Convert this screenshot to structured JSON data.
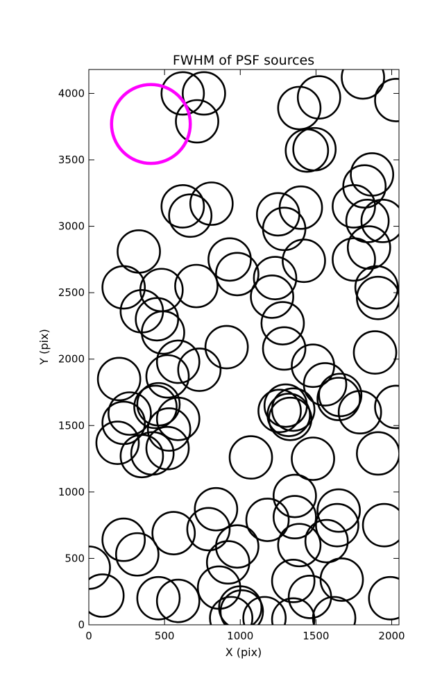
{
  "chart_data": {
    "type": "scatter",
    "title": "FWHM of PSF sources",
    "xlabel": "X (pix)",
    "ylabel": "Y (pix)",
    "xlim": [
      0,
      2048
    ],
    "ylim": [
      0,
      4180
    ],
    "xticks": [
      0,
      500,
      1000,
      1500,
      2000
    ],
    "yticks": [
      0,
      500,
      1000,
      1500,
      2000,
      2500,
      3000,
      3500,
      4000
    ],
    "grid": false,
    "series": [
      {
        "marker": "open-circle",
        "color": "#000000",
        "radius_pix": 140,
        "points": [
          [
            620,
            4000
          ],
          [
            760,
            4000
          ],
          [
            715,
            3790
          ],
          [
            1390,
            3890
          ],
          [
            1520,
            3970
          ],
          [
            1810,
            4120
          ],
          [
            2030,
            3950
          ],
          [
            1440,
            3570
          ],
          [
            1490,
            3580
          ],
          [
            1870,
            3390
          ],
          [
            1820,
            3300
          ],
          [
            1750,
            3150
          ],
          [
            1840,
            3040
          ],
          [
            1940,
            3040
          ],
          [
            620,
            3150
          ],
          [
            670,
            3080
          ],
          [
            810,
            3170
          ],
          [
            1250,
            3090
          ],
          [
            1290,
            2980
          ],
          [
            1400,
            3140
          ],
          [
            330,
            2810
          ],
          [
            930,
            2750
          ],
          [
            980,
            2640
          ],
          [
            1850,
            2840
          ],
          [
            1750,
            2750
          ],
          [
            1420,
            2740
          ],
          [
            1230,
            2610
          ],
          [
            1210,
            2470
          ],
          [
            230,
            2540
          ],
          [
            480,
            2520
          ],
          [
            710,
            2550
          ],
          [
            1900,
            2540
          ],
          [
            1910,
            2460
          ],
          [
            350,
            2360
          ],
          [
            450,
            2300
          ],
          [
            490,
            2200
          ],
          [
            1280,
            2270
          ],
          [
            910,
            2090
          ],
          [
            1290,
            2080
          ],
          [
            1890,
            2050
          ],
          [
            200,
            1850
          ],
          [
            520,
            1870
          ],
          [
            590,
            1980
          ],
          [
            730,
            1920
          ],
          [
            1480,
            1950
          ],
          [
            1560,
            1810
          ],
          [
            1660,
            1730
          ],
          [
            1650,
            1700
          ],
          [
            1790,
            1600
          ],
          [
            2030,
            1640
          ],
          [
            270,
            1590
          ],
          [
            230,
            1520
          ],
          [
            440,
            1640
          ],
          [
            460,
            1660
          ],
          [
            590,
            1550
          ],
          [
            530,
            1470
          ],
          [
            520,
            1330
          ],
          [
            190,
            1370
          ],
          [
            350,
            1270
          ],
          [
            420,
            1290
          ],
          [
            1260,
            1610
          ],
          [
            1300,
            1650
          ],
          [
            1350,
            1620
          ],
          [
            1320,
            1580
          ],
          [
            1330,
            1550
          ],
          [
            1070,
            1260
          ],
          [
            1480,
            1250
          ],
          [
            1910,
            1290
          ],
          [
            840,
            870
          ],
          [
            790,
            720
          ],
          [
            1180,
            790
          ],
          [
            1360,
            970
          ],
          [
            1360,
            810
          ],
          [
            1650,
            860
          ],
          [
            1640,
            750
          ],
          [
            1570,
            630
          ],
          [
            1950,
            750
          ],
          [
            230,
            640
          ],
          [
            320,
            530
          ],
          [
            560,
            690
          ],
          [
            0,
            430
          ],
          [
            980,
            590
          ],
          [
            920,
            470
          ],
          [
            1390,
            600
          ],
          [
            860,
            280
          ],
          [
            1350,
            330
          ],
          [
            1460,
            210
          ],
          [
            1670,
            340
          ],
          [
            90,
            220
          ],
          [
            460,
            200
          ],
          [
            590,
            180
          ],
          [
            1000,
            130
          ],
          [
            1010,
            100
          ],
          [
            940,
            50
          ],
          [
            1160,
            50
          ],
          [
            1350,
            40
          ],
          [
            1620,
            50
          ],
          [
            1990,
            200
          ]
        ]
      },
      {
        "marker": "open-circle",
        "color": "#ff00ff",
        "radius_pix": 260,
        "points": [
          [
            410,
            3770
          ]
        ]
      }
    ]
  }
}
